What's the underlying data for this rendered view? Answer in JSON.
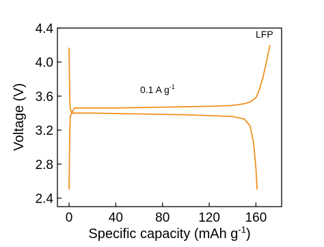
{
  "chart_data": {
    "type": "line",
    "xlabel": {
      "text": "Specific capacity (mAh g",
      "sup": "-1",
      "tail": ")"
    },
    "ylabel": "Voltage (V)",
    "annotation": {
      "text": "0.1 A g",
      "sup": "-1"
    },
    "label": "LFP",
    "xlim": [
      -10,
      182
    ],
    "ylim": [
      2.3,
      4.4
    ],
    "xticks": [
      0,
      40,
      80,
      120,
      160
    ],
    "yticks": [
      2.4,
      2.8,
      3.2,
      3.6,
      {
        "value": 4,
        "label": "4.0"
      },
      4.4
    ],
    "series": [
      {
        "color": "#f0901e",
        "x": [
          0,
          0.3,
          0.6,
          1,
          2,
          3,
          4,
          5,
          10,
          40,
          80,
          120,
          140,
          150,
          155,
          160,
          163,
          166,
          169,
          172
        ],
        "values": [
          2.5,
          2.9,
          3.2,
          3.36,
          3.39,
          3.42,
          3.45,
          3.46,
          3.46,
          3.46,
          3.47,
          3.48,
          3.49,
          3.51,
          3.53,
          3.58,
          3.68,
          3.82,
          4.0,
          4.2
        ]
      },
      {
        "color": "#f0901e",
        "x": [
          0,
          0.3,
          0.6,
          1,
          2,
          3,
          5,
          20,
          60,
          100,
          140,
          150,
          155,
          158,
          160,
          161
        ],
        "values": [
          4.17,
          3.8,
          3.55,
          3.45,
          3.41,
          3.4,
          3.4,
          3.4,
          3.39,
          3.38,
          3.36,
          3.33,
          3.25,
          3.05,
          2.75,
          2.5
        ]
      }
    ]
  }
}
